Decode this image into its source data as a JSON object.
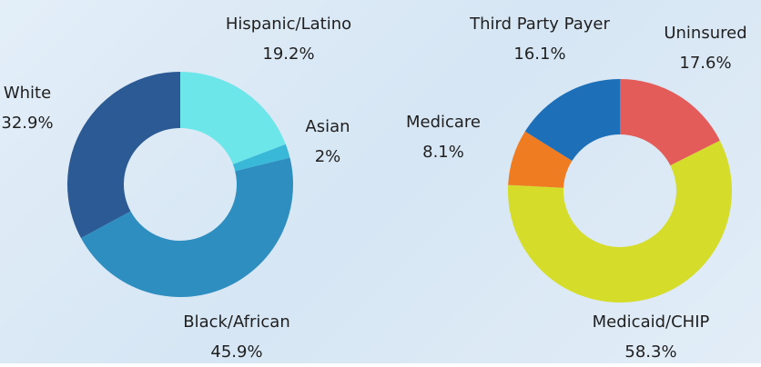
{
  "chart_data": [
    {
      "type": "pie",
      "categories": [
        "Hispanic/Latino",
        "Asian",
        "Black/African",
        "White"
      ],
      "values": [
        19.2,
        2,
        45.9,
        32.9
      ],
      "value_labels": [
        "19.2%",
        "2%",
        "45.9%",
        "32.9%"
      ],
      "colors": [
        "#6de6ea",
        "#3ab8d8",
        "#2e8ec0",
        "#2c5a94"
      ]
    },
    {
      "type": "pie",
      "categories": [
        "Uninsured",
        "Medicaid/CHIP",
        "Medicare",
        "Third Party Payer"
      ],
      "values": [
        17.6,
        58.3,
        8.1,
        16.1
      ],
      "value_labels": [
        "17.6%",
        "58.3%",
        "8.1%",
        "16.1%"
      ],
      "colors": [
        "#e35c5a",
        "#d5dd2a",
        "#f07c22",
        "#1d6fb8"
      ]
    }
  ]
}
